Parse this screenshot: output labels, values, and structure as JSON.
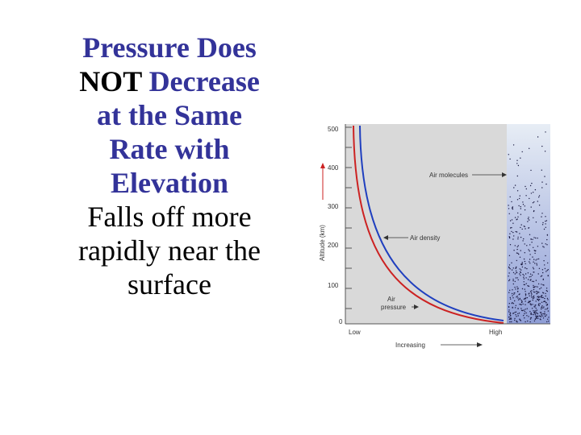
{
  "slide": {
    "title_lines": [
      {
        "parts": [
          {
            "text": "Pressure Does",
            "style": "bold"
          }
        ]
      },
      {
        "parts": [
          {
            "text": "NOT",
            "style": "dark"
          },
          {
            "text": " Decrease",
            "style": "bold"
          }
        ]
      },
      {
        "parts": [
          {
            "text": "at the Same",
            "style": "bold"
          }
        ]
      },
      {
        "parts": [
          {
            "text": "Rate with",
            "style": "bold"
          }
        ]
      },
      {
        "parts": [
          {
            "text": "Elevation",
            "style": "bold"
          }
        ]
      }
    ],
    "body_lines": [
      "Falls off more",
      "rapidly near the",
      "surface"
    ]
  },
  "figure": {
    "ylabel": "Altitude (km)",
    "y_ticks": [
      "500",
      "400",
      "300",
      "200",
      "100",
      "0"
    ],
    "x_low": "Low",
    "x_high": "High",
    "x_caption": "Increasing",
    "labels": {
      "air_molecules": "Air molecules",
      "air_density": "Air density",
      "air_pressure_1": "Air",
      "air_pressure_2": "pressure"
    },
    "colors": {
      "title": "#333399",
      "density_curve": "#1f3fbf",
      "pressure_curve": "#cc2222",
      "panel": "#d8d8d8"
    }
  }
}
